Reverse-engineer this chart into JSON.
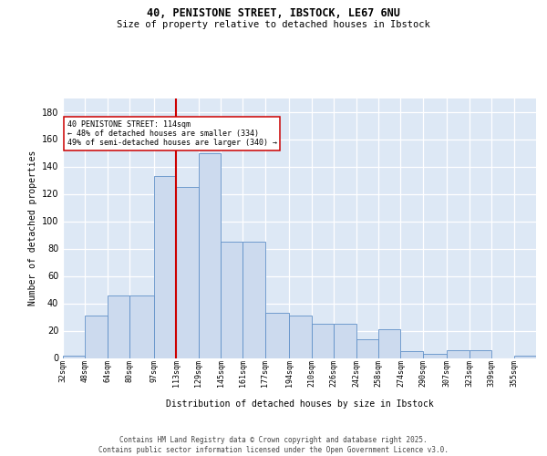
{
  "title_line1": "40, PENISTONE STREET, IBSTOCK, LE67 6NU",
  "title_line2": "Size of property relative to detached houses in Ibstock",
  "xlabel": "Distribution of detached houses by size in Ibstock",
  "ylabel": "Number of detached properties",
  "bar_labels": [
    "32sqm",
    "48sqm",
    "64sqm",
    "80sqm",
    "97sqm",
    "113sqm",
    "129sqm",
    "145sqm",
    "161sqm",
    "177sqm",
    "194sqm",
    "210sqm",
    "226sqm",
    "242sqm",
    "258sqm",
    "274sqm",
    "290sqm",
    "307sqm",
    "323sqm",
    "339sqm",
    "355sqm"
  ],
  "bins": [
    32,
    48,
    64,
    80,
    97,
    113,
    129,
    145,
    161,
    177,
    194,
    210,
    226,
    242,
    258,
    274,
    290,
    307,
    323,
    339,
    355
  ],
  "counts": [
    2,
    31,
    46,
    46,
    133,
    125,
    150,
    85,
    85,
    33,
    31,
    25,
    25,
    14,
    21,
    5,
    3,
    6,
    6,
    0,
    2
  ],
  "bar_color": "#ccdaee",
  "bar_edge_color": "#6090c8",
  "property_line_x": 113,
  "property_line_color": "#cc0000",
  "annotation_text": "40 PENISTONE STREET: 114sqm\n← 48% of detached houses are smaller (334)\n49% of semi-detached houses are larger (340) →",
  "annotation_box_facecolor": "white",
  "annotation_box_edgecolor": "#cc0000",
  "ylim": [
    0,
    190
  ],
  "yticks": [
    0,
    20,
    40,
    60,
    80,
    100,
    120,
    140,
    160,
    180
  ],
  "background_color": "#dde8f5",
  "grid_color": "white",
  "footer_line1": "Contains HM Land Registry data © Crown copyright and database right 2025.",
  "footer_line2": "Contains public sector information licensed under the Open Government Licence v3.0."
}
